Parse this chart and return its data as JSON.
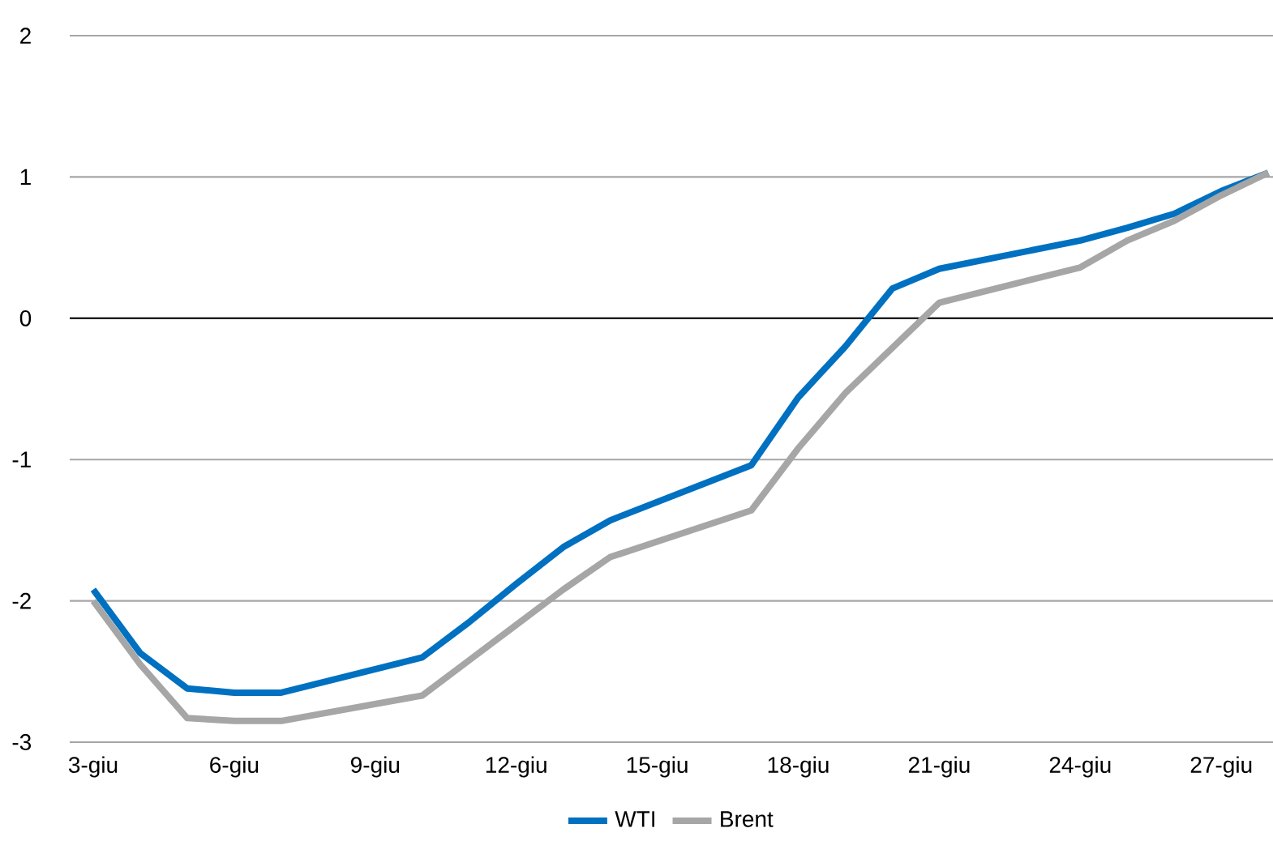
{
  "chart_data": {
    "type": "line",
    "x": [
      3,
      4,
      5,
      6,
      7,
      10,
      11,
      12,
      13,
      14,
      17,
      18,
      19,
      20,
      21,
      24,
      25,
      26,
      27,
      28
    ],
    "series": [
      {
        "name": "WTI",
        "color": "#0070c0",
        "values": [
          -1.92,
          -2.37,
          -2.62,
          -2.65,
          -2.65,
          -2.4,
          -2.15,
          -1.88,
          -1.62,
          -1.43,
          -1.04,
          -0.56,
          -0.2,
          0.21,
          0.35,
          0.55,
          0.64,
          0.74,
          0.9,
          1.03
        ]
      },
      {
        "name": "Brent",
        "color": "#a6a6a6",
        "values": [
          -2.0,
          -2.45,
          -2.83,
          -2.85,
          -2.85,
          -2.67,
          -2.42,
          -2.17,
          -1.92,
          -1.69,
          -1.36,
          -0.92,
          -0.53,
          -0.21,
          0.11,
          0.36,
          0.55,
          0.69,
          0.87,
          1.03
        ]
      }
    ],
    "xlim": [
      2.5,
      28.1
    ],
    "xticks": [
      {
        "value": 3,
        "label": "3-giu"
      },
      {
        "value": 6,
        "label": "6-giu"
      },
      {
        "value": 9,
        "label": "9-giu"
      },
      {
        "value": 12,
        "label": "12-giu"
      },
      {
        "value": 15,
        "label": "15-giu"
      },
      {
        "value": 18,
        "label": "18-giu"
      },
      {
        "value": 21,
        "label": "21-giu"
      },
      {
        "value": 24,
        "label": "24-giu"
      },
      {
        "value": 27,
        "label": "27-giu"
      }
    ],
    "ylim": [
      -3,
      2
    ],
    "yticks": [
      -3,
      -2,
      -1,
      0,
      1,
      2
    ],
    "grid": "y",
    "legend": "bottom",
    "marker": "none",
    "line_style": "solid"
  }
}
